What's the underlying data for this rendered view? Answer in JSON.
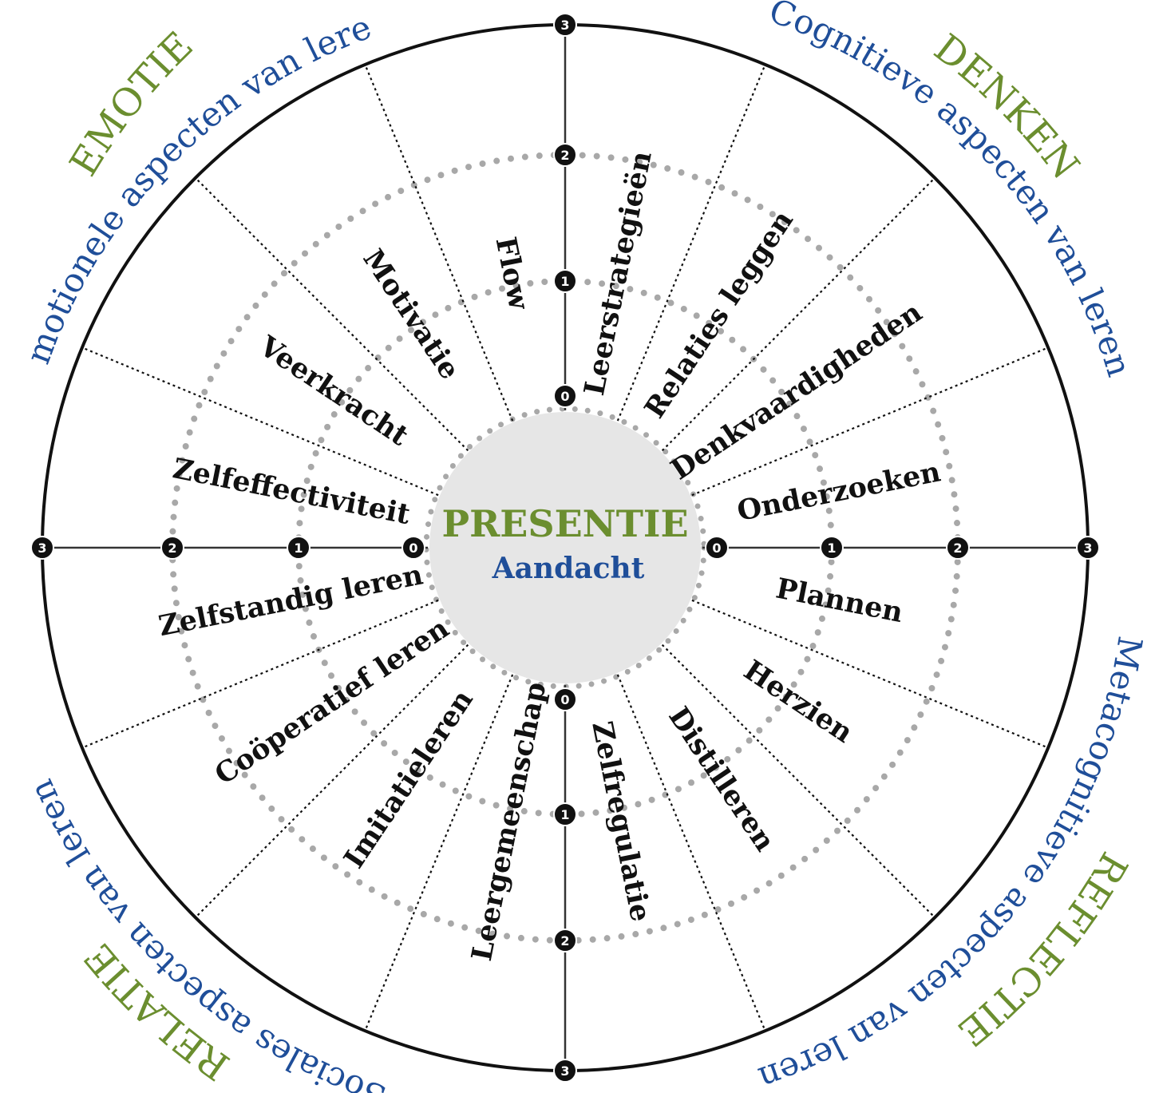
{
  "center": {
    "title": "PRESENTIE",
    "subtitle": "Aandacht"
  },
  "colors": {
    "green": "#6b8e2f",
    "blue": "#1f4e99",
    "ink": "#111111",
    "hub": "#e6e6e6",
    "dots": "#a8a8a8"
  },
  "scale": {
    "levels": [
      "0",
      "1",
      "2",
      "3"
    ]
  },
  "quadrants": [
    {
      "title": "EMOTIE",
      "subtitle": "Emotionele aspecten van leren",
      "position": "top-left"
    },
    {
      "title": "DENKEN",
      "subtitle": "Cognitieve aspecten van leren",
      "position": "top-right"
    },
    {
      "title": "REFLECTIE",
      "subtitle": "Metacognitieve aspecten van leren",
      "position": "bottom-right"
    },
    {
      "title": "RELATIE",
      "subtitle": "Sociales aspecten van leren",
      "position": "bottom-left"
    }
  ],
  "segments": [
    {
      "label": "Leerstrategieën"
    },
    {
      "label": "Relaties leggen"
    },
    {
      "label": "Denkvaardigheden"
    },
    {
      "label": "Onderzoeken"
    },
    {
      "label": "Plannen"
    },
    {
      "label": "Herzien"
    },
    {
      "label": "Distilleren"
    },
    {
      "label": "Zelfregulatie"
    },
    {
      "label": "Leergemeenschap"
    },
    {
      "label": "Imitatieleren"
    },
    {
      "label": "Coöperatief leren"
    },
    {
      "label": "Zelfstandig leren"
    },
    {
      "label": "Zelfeffectiviteit"
    },
    {
      "label": "Veerkracht"
    },
    {
      "label": "Motivatie"
    },
    {
      "label": "Flow"
    }
  ]
}
